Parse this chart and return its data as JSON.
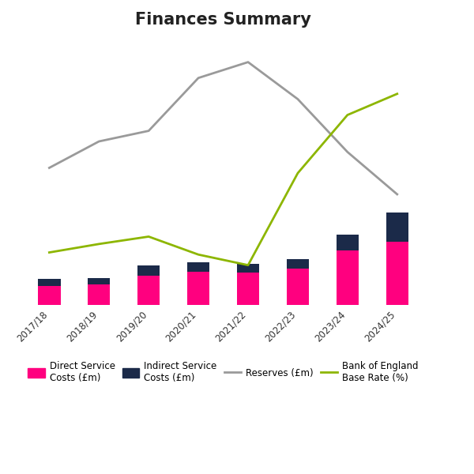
{
  "title": "Finances Summary",
  "categories": [
    "2017/18",
    "2018/19",
    "2019/20",
    "2020/21",
    "2021/22",
    "2022/23",
    "2023/24",
    "2024/25"
  ],
  "direct_service_costs": [
    1.8,
    2.0,
    2.8,
    3.2,
    3.1,
    3.5,
    5.2,
    6.0
  ],
  "indirect_service_costs": [
    0.7,
    0.6,
    1.0,
    0.9,
    0.8,
    0.85,
    1.5,
    2.8
  ],
  "reserves": [
    13.0,
    15.5,
    16.5,
    21.5,
    23.0,
    19.5,
    14.5,
    10.5
  ],
  "boe_base_rate": [
    5.0,
    5.8,
    6.5,
    4.8,
    3.8,
    12.5,
    18.0,
    20.0
  ],
  "bar_color_direct": "#FF007F",
  "bar_color_indirect": "#1b2a49",
  "line_color_reserves": "#9a9a9a",
  "line_color_boe": "#8db600",
  "background_color": "#ffffff",
  "grid_color": "#e8e8e8",
  "title_fontsize": 15,
  "tick_fontsize": 8.5,
  "legend_fontsize": 8.5,
  "ylim_max": 25,
  "bar_width": 0.45
}
